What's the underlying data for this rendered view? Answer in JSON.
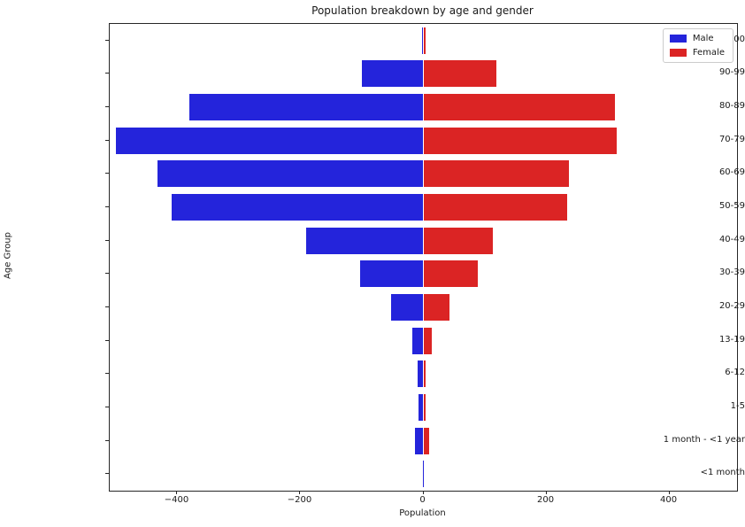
{
  "chart_data": {
    "type": "bar",
    "orientation": "horizontal",
    "title": "Population breakdown by age and gender",
    "xlabel": "Population",
    "ylabel": "Age Group",
    "categories": [
      ">100",
      "90-99",
      "80-89",
      "70-79",
      "60-69",
      "50-59",
      "40-49",
      "30-39",
      "20-29",
      "13-19",
      "6-12",
      "1-5",
      "1 month - <1 year",
      "<1 month"
    ],
    "series": [
      {
        "name": "Male",
        "color": "#2424db",
        "values": [
          -2,
          -100,
          -380,
          -500,
          -433,
          -410,
          -190,
          -103,
          -53,
          -18,
          -10,
          -8,
          -13,
          -1
        ]
      },
      {
        "name": "Female",
        "color": "#db2424",
        "values": [
          3,
          119,
          312,
          314,
          236,
          234,
          113,
          88,
          43,
          13,
          4,
          3,
          9,
          0
        ]
      }
    ],
    "xlim": [
      -510,
      510
    ],
    "xticks": [
      {
        "value": -400,
        "label": "−400"
      },
      {
        "value": -200,
        "label": "−200"
      },
      {
        "value": 0,
        "label": "0"
      },
      {
        "value": 200,
        "label": "200"
      },
      {
        "value": 400,
        "label": "400"
      }
    ],
    "grid": false,
    "legend_position": "upper right",
    "legend_entries": [
      "Male",
      "Female"
    ]
  }
}
